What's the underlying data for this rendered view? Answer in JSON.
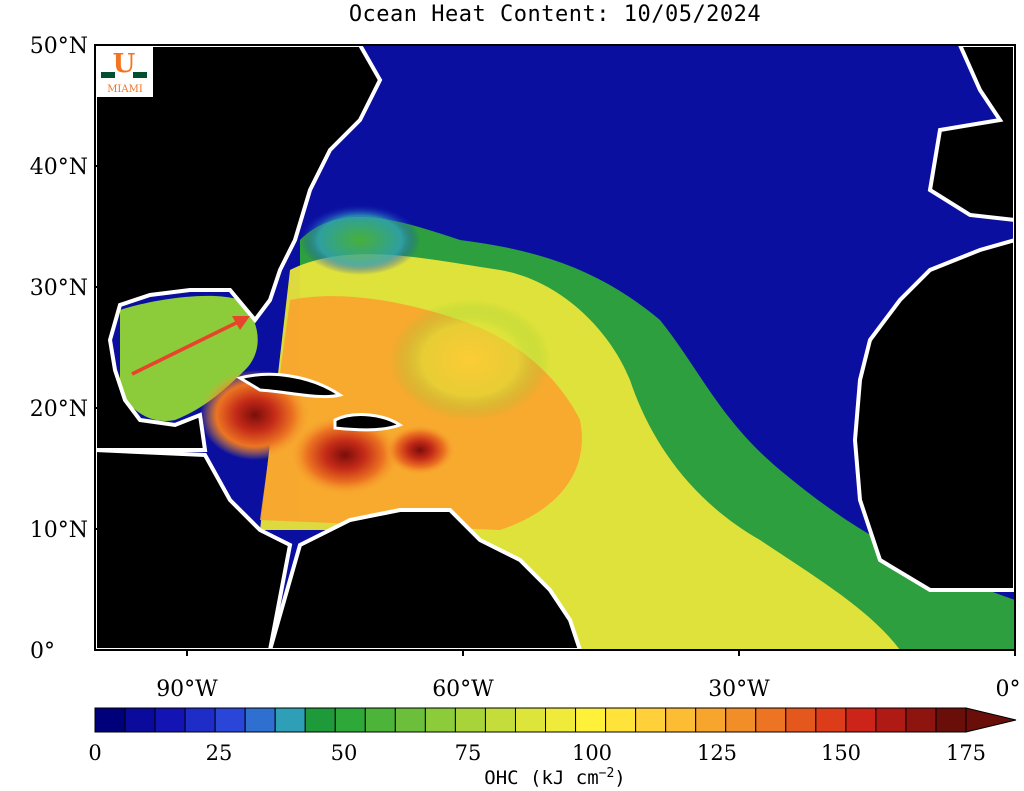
{
  "title": "Ocean Heat Content: 10/05/2024",
  "logo": {
    "letter": "U",
    "text": "MIAMI",
    "green": "#005030",
    "orange": "#f47321"
  },
  "latitude_labels": [
    "50°N",
    "40°N",
    "30°N",
    "20°N",
    "10°N",
    "0°"
  ],
  "longitude_labels": [
    "90°W",
    "60°W",
    "30°W",
    "0°"
  ],
  "colorbar": {
    "ticks": [
      "0",
      "25",
      "50",
      "75",
      "100",
      "125",
      "150",
      "175"
    ],
    "label_main": "OHC (kJ cm",
    "label_sup": "−2",
    "label_end": ")"
  },
  "colors": {
    "land": "#000000",
    "coast": "#ffffff",
    "ocean_low": "#0b0fa0",
    "arrow": "#e8432b"
  },
  "chart_data": {
    "type": "heatmap",
    "title": "Ocean Heat Content: 10/05/2024",
    "variable": "OHC (kJ cm−2)",
    "lat_range": [
      0,
      50
    ],
    "lon_range": [
      -100,
      0
    ],
    "value_range": [
      0,
      175
    ],
    "colorbar_ticks": [
      0,
      25,
      50,
      75,
      100,
      125,
      150,
      175
    ],
    "colorbar_steps": [
      "#00007a",
      "#0a0a9c",
      "#1414b4",
      "#1e2cc8",
      "#2a46d8",
      "#2f6fd0",
      "#2f9fb8",
      "#1f9a3a",
      "#2fa83a",
      "#4db43a",
      "#6cbf3a",
      "#8ccb3a",
      "#a8d43a",
      "#c4dd3a",
      "#dde43a",
      "#f0ea3a",
      "#fff03a",
      "#ffe23a",
      "#ffd03a",
      "#fcbc34",
      "#f8a52e",
      "#f28e28",
      "#ec7422",
      "#e4581e",
      "#dc3c1a",
      "#cc2418",
      "#b01a14",
      "#8e1410",
      "#6a0e0a"
    ]
  }
}
